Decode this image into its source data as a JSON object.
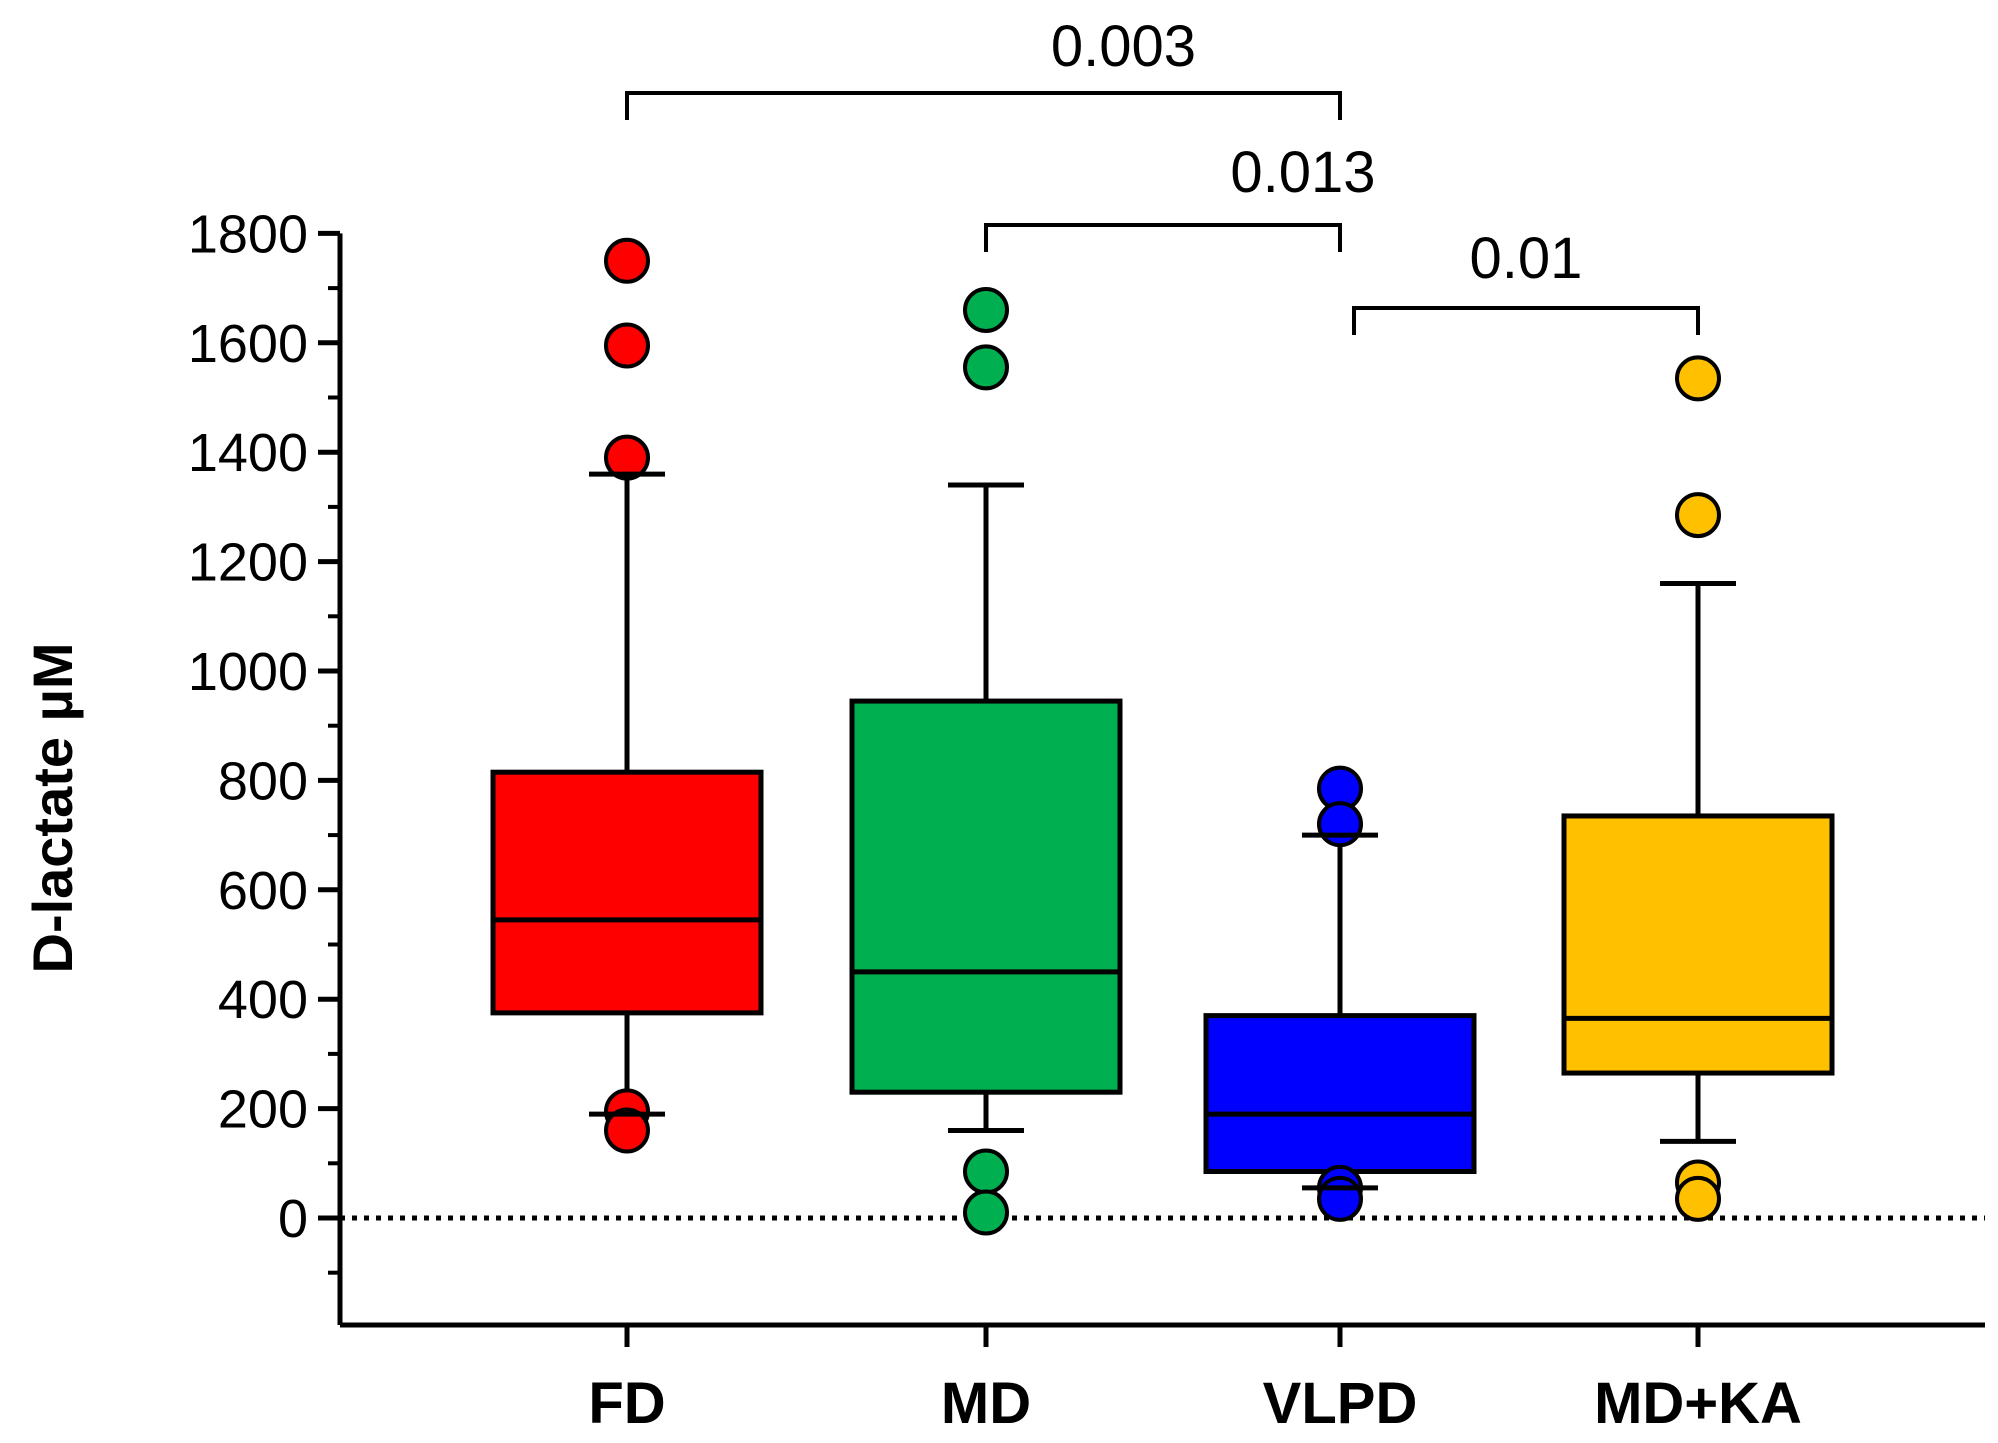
{
  "chart_data": {
    "type": "box",
    "ylabel": "D-lactate µM",
    "xlabel": "",
    "title": "",
    "ylim": [
      -200,
      1800
    ],
    "yticks": [
      0,
      200,
      400,
      600,
      800,
      1000,
      1200,
      1400,
      1600,
      1800
    ],
    "y_minor_step": 100,
    "zero_reference_line": "dotted",
    "grid": false,
    "legend": "none",
    "categories": [
      "FD",
      "MD",
      "VLPD",
      "MD+KA"
    ],
    "series": [
      {
        "category": "FD",
        "color": "#ff0000",
        "whisker_low": 190,
        "q1": 375,
        "median": 545,
        "q3": 815,
        "whisker_high": 1360,
        "outliers": [
          1750,
          1595,
          1390,
          195,
          160
        ]
      },
      {
        "category": "MD",
        "color": "#00b050",
        "whisker_low": 160,
        "q1": 230,
        "median": 450,
        "q3": 945,
        "whisker_high": 1340,
        "outliers": [
          1660,
          1555,
          85,
          10
        ]
      },
      {
        "category": "VLPD",
        "color": "#0000ff",
        "whisker_low": 55,
        "q1": 85,
        "median": 190,
        "q3": 370,
        "whisker_high": 700,
        "outliers": [
          785,
          720,
          55,
          35
        ]
      },
      {
        "category": "MD+KA",
        "color": "#ffc000",
        "whisker_low": 140,
        "q1": 265,
        "median": 365,
        "q3": 735,
        "whisker_high": 1160,
        "outliers": [
          1535,
          1285,
          65,
          35
        ]
      }
    ],
    "significance": [
      {
        "from": "FD",
        "to": "VLPD",
        "label": "0.003"
      },
      {
        "from": "MD",
        "to": "VLPD",
        "label": "0.013"
      },
      {
        "from": "VLPD",
        "to": "MD+KA",
        "label": "0.01"
      }
    ]
  }
}
